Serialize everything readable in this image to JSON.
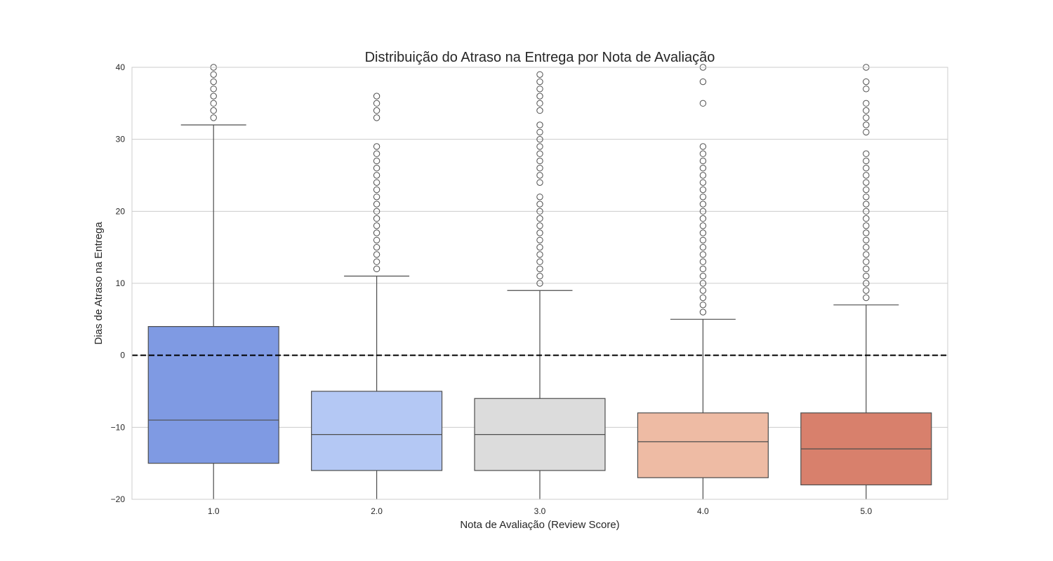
{
  "chart_data": {
    "type": "box",
    "title": "Distribuição do Atraso na Entrega por Nota de Avaliação",
    "xlabel": "Nota de Avaliação (Review Score)",
    "ylabel": "Dias de Atraso na Entrega",
    "ylim": [
      -20,
      40
    ],
    "yticks": [
      -20,
      -10,
      0,
      10,
      20,
      30,
      40
    ],
    "ytick_labels": [
      "−20",
      "−10",
      "0",
      "10",
      "20",
      "30",
      "40"
    ],
    "grid": true,
    "reference_line": {
      "y": 0,
      "style": "dashed",
      "color": "#000000"
    },
    "categories": [
      "1.0",
      "2.0",
      "3.0",
      "4.0",
      "5.0"
    ],
    "boxes": [
      {
        "category": "1.0",
        "color": "#7f9ae3",
        "q1": -15,
        "median": -9,
        "q3": 4,
        "whisker_low": -20,
        "whisker_high": 32,
        "outliers": [
          33,
          34,
          35,
          36,
          37,
          38,
          39,
          40
        ]
      },
      {
        "category": "2.0",
        "color": "#b4c8f4",
        "q1": -16,
        "median": -11,
        "q3": -5,
        "whisker_low": -20,
        "whisker_high": 11,
        "outliers": [
          12,
          13,
          14,
          15,
          16,
          17,
          18,
          19,
          20,
          21,
          22,
          23,
          24,
          25,
          26,
          27,
          28,
          29,
          33,
          34,
          35,
          36
        ]
      },
      {
        "category": "3.0",
        "color": "#dcdcdc",
        "q1": -16,
        "median": -11,
        "q3": -6,
        "whisker_low": -20,
        "whisker_high": 9,
        "outliers": [
          10,
          11,
          12,
          13,
          14,
          15,
          16,
          17,
          18,
          19,
          20,
          21,
          22,
          24,
          25,
          26,
          27,
          28,
          29,
          30,
          31,
          32,
          34,
          35,
          36,
          37,
          38,
          39
        ]
      },
      {
        "category": "4.0",
        "color": "#eebba4",
        "q1": -17,
        "median": -12,
        "q3": -8,
        "whisker_low": -20,
        "whisker_high": 5,
        "outliers": [
          6,
          7,
          8,
          9,
          10,
          11,
          12,
          13,
          14,
          15,
          16,
          17,
          18,
          19,
          20,
          21,
          22,
          23,
          24,
          25,
          26,
          27,
          28,
          29,
          35,
          38,
          40
        ]
      },
      {
        "category": "5.0",
        "color": "#d8806c",
        "q1": -18,
        "median": -13,
        "q3": -8,
        "whisker_low": -20,
        "whisker_high": 7,
        "outliers": [
          8,
          9,
          10,
          11,
          12,
          13,
          14,
          15,
          16,
          17,
          18,
          19,
          20,
          21,
          22,
          23,
          24,
          25,
          26,
          27,
          28,
          31,
          32,
          33,
          34,
          35,
          37,
          38,
          40
        ]
      }
    ]
  }
}
